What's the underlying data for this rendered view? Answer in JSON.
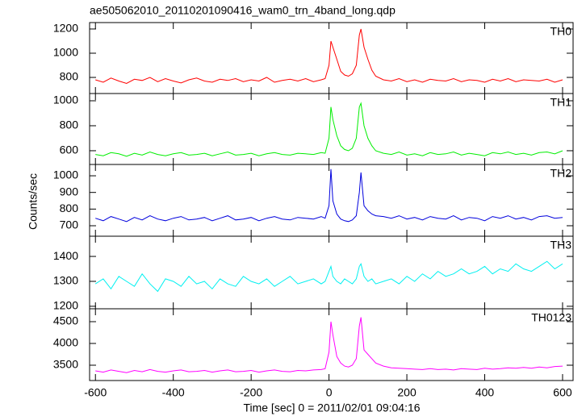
{
  "chart_data": {
    "type": "line",
    "title": "ae505062010_20110201090416_wam0_trn_4band_long.qdp",
    "xlabel": "Time [sec] 0 = 2011/02/01 09:04:16",
    "ylabel": "Counts/sec",
    "xlim": [
      -615,
      627
    ],
    "xticks": [
      -600,
      -400,
      -200,
      0,
      200,
      400,
      600
    ],
    "x": [
      -600,
      -580,
      -560,
      -540,
      -520,
      -500,
      -480,
      -460,
      -440,
      -420,
      -400,
      -380,
      -360,
      -340,
      -320,
      -300,
      -280,
      -260,
      -240,
      -220,
      -200,
      -180,
      -160,
      -140,
      -120,
      -100,
      -80,
      -60,
      -40,
      -20,
      -10,
      0,
      5,
      10,
      20,
      30,
      40,
      50,
      60,
      70,
      78,
      82,
      90,
      100,
      110,
      120,
      140,
      160,
      180,
      200,
      220,
      240,
      260,
      280,
      300,
      320,
      340,
      360,
      380,
      400,
      420,
      440,
      460,
      480,
      500,
      520,
      540,
      560,
      580,
      600
    ],
    "series": [
      {
        "name": "TH0",
        "color": "#ff0000",
        "ylim": [
          667,
          1253
        ],
        "yticks": [
          800,
          1000,
          1200
        ],
        "values": [
          780,
          760,
          795,
          770,
          750,
          785,
          775,
          800,
          765,
          790,
          770,
          755,
          780,
          795,
          770,
          760,
          785,
          775,
          790,
          765,
          780,
          770,
          800,
          760,
          775,
          785,
          770,
          790,
          765,
          780,
          790,
          900,
          1100,
          1050,
          950,
          850,
          820,
          810,
          830,
          900,
          1150,
          1200,
          1050,
          950,
          860,
          810,
          780,
          770,
          790,
          765,
          780,
          760,
          785,
          775,
          770,
          790,
          765,
          780,
          775,
          760,
          785,
          770,
          790,
          765,
          780,
          775,
          770,
          785,
          760,
          780
        ]
      },
      {
        "name": "TH1",
        "color": "#00ee00",
        "ylim": [
          490,
          1058
        ],
        "yticks": [
          600,
          800,
          1000
        ],
        "values": [
          570,
          560,
          585,
          575,
          555,
          580,
          565,
          590,
          570,
          560,
          575,
          585,
          565,
          570,
          580,
          560,
          575,
          590,
          565,
          570,
          580,
          560,
          575,
          585,
          570,
          565,
          580,
          575,
          570,
          585,
          580,
          700,
          950,
          850,
          720,
          640,
          610,
          600,
          620,
          700,
          950,
          980,
          800,
          700,
          640,
          600,
          580,
          570,
          590,
          565,
          575,
          560,
          585,
          570,
          575,
          590,
          565,
          580,
          570,
          560,
          585,
          575,
          590,
          570,
          580,
          565,
          585,
          590,
          575,
          600
        ]
      },
      {
        "name": "TH2",
        "color": "#0000dd",
        "ylim": [
          637,
          1068
        ],
        "yticks": [
          700,
          800,
          900,
          1000
        ],
        "values": [
          745,
          730,
          755,
          740,
          725,
          750,
          735,
          760,
          740,
          730,
          745,
          755,
          735,
          740,
          750,
          730,
          745,
          760,
          735,
          740,
          750,
          730,
          745,
          755,
          740,
          735,
          750,
          745,
          740,
          755,
          745,
          820,
          1040,
          850,
          770,
          740,
          730,
          725,
          735,
          760,
          900,
          1020,
          820,
          790,
          770,
          760,
          755,
          745,
          760,
          740,
          750,
          735,
          755,
          745,
          740,
          760,
          735,
          750,
          745,
          730,
          755,
          745,
          760,
          740,
          750,
          735,
          755,
          760,
          745,
          750
        ]
      },
      {
        "name": "TH3",
        "color": "#00f0f0",
        "ylim": [
          1190,
          1481
        ],
        "yticks": [
          1200,
          1300,
          1400
        ],
        "values": [
          1290,
          1310,
          1270,
          1320,
          1300,
          1280,
          1330,
          1290,
          1260,
          1310,
          1300,
          1280,
          1320,
          1290,
          1300,
          1270,
          1310,
          1290,
          1280,
          1320,
          1300,
          1290,
          1310,
          1280,
          1300,
          1320,
          1290,
          1300,
          1310,
          1290,
          1300,
          1340,
          1360,
          1320,
          1300,
          1290,
          1310,
          1300,
          1290,
          1310,
          1360,
          1370,
          1320,
          1300,
          1310,
          1290,
          1300,
          1310,
          1290,
          1320,
          1300,
          1330,
          1310,
          1340,
          1320,
          1330,
          1350,
          1330,
          1340,
          1360,
          1330,
          1350,
          1340,
          1370,
          1350,
          1340,
          1360,
          1380,
          1350,
          1370
        ]
      },
      {
        "name": "TH0123",
        "color": "#ff00ff",
        "ylim": [
          3148,
          4796
        ],
        "yticks": [
          3500,
          4000,
          4500
        ],
        "values": [
          3370,
          3340,
          3390,
          3360,
          3330,
          3380,
          3350,
          3400,
          3360,
          3340,
          3370,
          3390,
          3350,
          3360,
          3380,
          3340,
          3370,
          3390,
          3350,
          3360,
          3380,
          3340,
          3370,
          3390,
          3360,
          3350,
          3380,
          3370,
          3390,
          3400,
          3420,
          3800,
          4500,
          4200,
          3700,
          3550,
          3480,
          3460,
          3500,
          3650,
          4400,
          4600,
          3850,
          3750,
          3650,
          3550,
          3480,
          3440,
          3430,
          3420,
          3410,
          3400,
          3420,
          3400,
          3410,
          3390,
          3420,
          3410,
          3400,
          3430,
          3410,
          3420,
          3440,
          3430,
          3450,
          3430,
          3460,
          3440,
          3470,
          3480
        ]
      }
    ]
  }
}
